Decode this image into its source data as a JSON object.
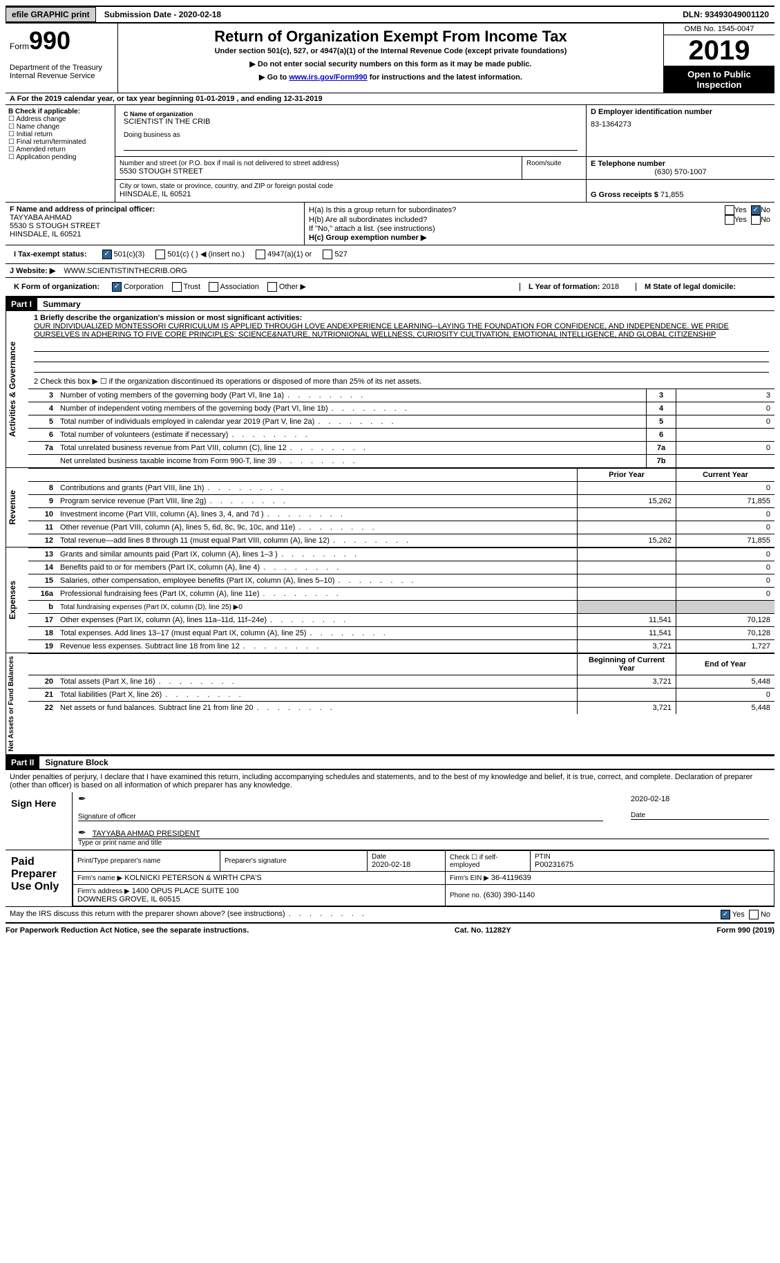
{
  "topbar": {
    "efile": "efile GRAPHIC print",
    "submission": "Submission Date - 2020-02-18",
    "dln": "DLN: 93493049001120"
  },
  "header": {
    "form_prefix": "Form",
    "form_number": "990",
    "dept": "Department of the Treasury\nInternal Revenue Service",
    "title": "Return of Organization Exempt From Income Tax",
    "subtitle": "Under section 501(c), 527, or 4947(a)(1) of the Internal Revenue Code (except private foundations)",
    "note1": "▶ Do not enter social security numbers on this form as it may be made public.",
    "note2_pre": "▶ Go to ",
    "note2_link": "www.irs.gov/Form990",
    "note2_post": " for instructions and the latest information.",
    "omb": "OMB No. 1545-0047",
    "year": "2019",
    "inspection": "Open to Public Inspection"
  },
  "row_a": "A For the 2019 calendar year, or tax year beginning 01-01-2019   , and ending 12-31-2019",
  "box_b": {
    "label": "B Check if applicable:",
    "opts": [
      "Address change",
      "Name change",
      "Initial return",
      "Final return/terminated",
      "Amended return",
      "Application pending"
    ]
  },
  "box_c": {
    "name_lab": "C Name of organization",
    "name": "SCIENTIST IN THE CRIB",
    "dba_lab": "Doing business as",
    "addr_lab": "Number and street (or P.O. box if mail is not delivered to street address)",
    "room_lab": "Room/suite",
    "addr": "5530 STOUGH STREET",
    "city_lab": "City or town, state or province, country, and ZIP or foreign postal code",
    "city": "HINSDALE, IL  60521"
  },
  "box_d": {
    "lab": "D Employer identification number",
    "val": "83-1364273"
  },
  "box_e": {
    "lab": "E Telephone number",
    "val": "(630) 570-1007"
  },
  "box_g": {
    "lab": "G Gross receipts $",
    "val": "71,855"
  },
  "box_f": {
    "lab": "F  Name and address of principal officer:",
    "name": "TAYYABA AHMAD",
    "addr1": "5530 S STOUGH STREET",
    "addr2": "HINSDALE, IL  60521"
  },
  "box_h": {
    "a": "H(a)  Is this a group return for subordinates?",
    "b": "H(b)  Are all subordinates included?",
    "note": "If \"No,\" attach a list. (see instructions)",
    "c": "H(c)  Group exemption number ▶"
  },
  "row_i": {
    "lab": "I  Tax-exempt status:",
    "o1": "501(c)(3)",
    "o2": "501(c) (  ) ◀ (insert no.)",
    "o3": "4947(a)(1) or",
    "o4": "527"
  },
  "row_j": {
    "lab": "J  Website: ▶",
    "val": "WWW.SCIENTISTINTHECRIB.ORG"
  },
  "row_k": {
    "lab": "K Form of organization:",
    "o1": "Corporation",
    "o2": "Trust",
    "o3": "Association",
    "o4": "Other ▶"
  },
  "row_l": {
    "lab": "L Year of formation:",
    "val": "2018"
  },
  "row_m": {
    "lab": "M State of legal domicile:",
    "val": ""
  },
  "yesno": {
    "yes": "Yes",
    "no": "No"
  },
  "part1": {
    "hdr": "Part I",
    "title": "Summary",
    "q1_lab": "1  Briefly describe the organization's mission or most significant activities:",
    "q1_txt": "OUR INDIVIDUALIZED MONTESSORI CURRICULUM IS APPLIED THROUGH LOVE ANDEXPERIENCE LEARNING--LAYING THE FOUNDATION FOR CONFIDENCE, AND INDEPENDENCE. WE PRIDE OURSELVES IN ADHERING TO FIVE CORE PRINCIPLES: SCIENCE&NATURE, NUTRIONIONAL WELLNESS, CURIOSITY CULTIVATION, EMOTIONAL INTELLIGENCE, AND GLOBAL CITIZENSHIP",
    "q2": "2   Check this box ▶ ☐  if the organization discontinued its operations or disposed of more than 25% of its net assets.",
    "lines": [
      {
        "n": "3",
        "t": "Number of voting members of the governing body (Part VI, line 1a)",
        "box": "3",
        "v": "3"
      },
      {
        "n": "4",
        "t": "Number of independent voting members of the governing body (Part VI, line 1b)",
        "box": "4",
        "v": "0"
      },
      {
        "n": "5",
        "t": "Total number of individuals employed in calendar year 2019 (Part V, line 2a)",
        "box": "5",
        "v": "0"
      },
      {
        "n": "6",
        "t": "Total number of volunteers (estimate if necessary)",
        "box": "6",
        "v": ""
      },
      {
        "n": "7a",
        "t": "Total unrelated business revenue from Part VIII, column (C), line 12",
        "box": "7a",
        "v": "0"
      },
      {
        "n": "",
        "t": "Net unrelated business taxable income from Form 990-T, line 39",
        "box": "7b",
        "v": ""
      }
    ],
    "vtab_ag": "Activities & Governance",
    "vtab_rev": "Revenue",
    "vtab_exp": "Expenses",
    "vtab_na": "Net Assets or Fund Balances",
    "col_prior": "Prior Year",
    "col_curr": "Current Year",
    "rev": [
      {
        "n": "8",
        "t": "Contributions and grants (Part VIII, line 1h)",
        "p": "",
        "c": "0"
      },
      {
        "n": "9",
        "t": "Program service revenue (Part VIII, line 2g)",
        "p": "15,262",
        "c": "71,855"
      },
      {
        "n": "10",
        "t": "Investment income (Part VIII, column (A), lines 3, 4, and 7d )",
        "p": "",
        "c": "0"
      },
      {
        "n": "11",
        "t": "Other revenue (Part VIII, column (A), lines 5, 6d, 8c, 9c, 10c, and 11e)",
        "p": "",
        "c": "0"
      },
      {
        "n": "12",
        "t": "Total revenue—add lines 8 through 11 (must equal Part VIII, column (A), line 12)",
        "p": "15,262",
        "c": "71,855"
      }
    ],
    "exp": [
      {
        "n": "13",
        "t": "Grants and similar amounts paid (Part IX, column (A), lines 1–3 )",
        "p": "",
        "c": "0"
      },
      {
        "n": "14",
        "t": "Benefits paid to or for members (Part IX, column (A), line 4)",
        "p": "",
        "c": "0"
      },
      {
        "n": "15",
        "t": "Salaries, other compensation, employee benefits (Part IX, column (A), lines 5–10)",
        "p": "",
        "c": "0"
      },
      {
        "n": "16a",
        "t": "Professional fundraising fees (Part IX, column (A), line 11e)",
        "p": "",
        "c": "0"
      },
      {
        "n": "b",
        "t": "Total fundraising expenses (Part IX, column (D), line 25) ▶0",
        "p": "shade",
        "c": "shade"
      },
      {
        "n": "17",
        "t": "Other expenses (Part IX, column (A), lines 11a–11d, 11f–24e)",
        "p": "11,541",
        "c": "70,128"
      },
      {
        "n": "18",
        "t": "Total expenses. Add lines 13–17 (must equal Part IX, column (A), line 25)",
        "p": "11,541",
        "c": "70,128"
      },
      {
        "n": "19",
        "t": "Revenue less expenses. Subtract line 18 from line 12",
        "p": "3,721",
        "c": "1,727"
      }
    ],
    "col_beg": "Beginning of Current Year",
    "col_end": "End of Year",
    "na": [
      {
        "n": "20",
        "t": "Total assets (Part X, line 16)",
        "p": "3,721",
        "c": "5,448"
      },
      {
        "n": "21",
        "t": "Total liabilities (Part X, line 26)",
        "p": "",
        "c": "0"
      },
      {
        "n": "22",
        "t": "Net assets or fund balances. Subtract line 21 from line 20",
        "p": "3,721",
        "c": "5,448"
      }
    ]
  },
  "part2": {
    "hdr": "Part II",
    "title": "Signature Block",
    "decl": "Under penalties of perjury, I declare that I have examined this return, including accompanying schedules and statements, and to the best of my knowledge and belief, it is true, correct, and complete. Declaration of preparer (other than officer) is based on all information of which preparer has any knowledge.",
    "sign": "Sign Here",
    "sig_officer": "Signature of officer",
    "sig_date": "2020-02-18",
    "date_lab": "Date",
    "officer_name": "TAYYABA AHMAD  PRESIDENT",
    "type_name": "Type or print name and title",
    "paid": "Paid Preparer Use Only",
    "prep_name_lab": "Print/Type preparer's name",
    "prep_sig_lab": "Preparer's signature",
    "prep_date": "2020-02-18",
    "check_se": "Check ☐ if self-employed",
    "ptin_lab": "PTIN",
    "ptin": "P00231675",
    "firm_name_lab": "Firm's name    ▶",
    "firm_name": "KOLNICKI PETERSON & WIRTH CPA'S",
    "firm_ein_lab": "Firm's EIN ▶",
    "firm_ein": "36-4119639",
    "firm_addr_lab": "Firm's address ▶",
    "firm_addr": "1400 OPUS PLACE SUITE 100\nDOWNERS GROVE, IL  60515",
    "firm_phone_lab": "Phone no.",
    "firm_phone": "(630) 390-1140",
    "discuss": "May the IRS discuss this return with the preparer shown above? (see instructions)"
  },
  "footer": {
    "left": "For Paperwork Reduction Act Notice, see the separate instructions.",
    "mid": "Cat. No. 11282Y",
    "right": "Form 990 (2019)"
  }
}
